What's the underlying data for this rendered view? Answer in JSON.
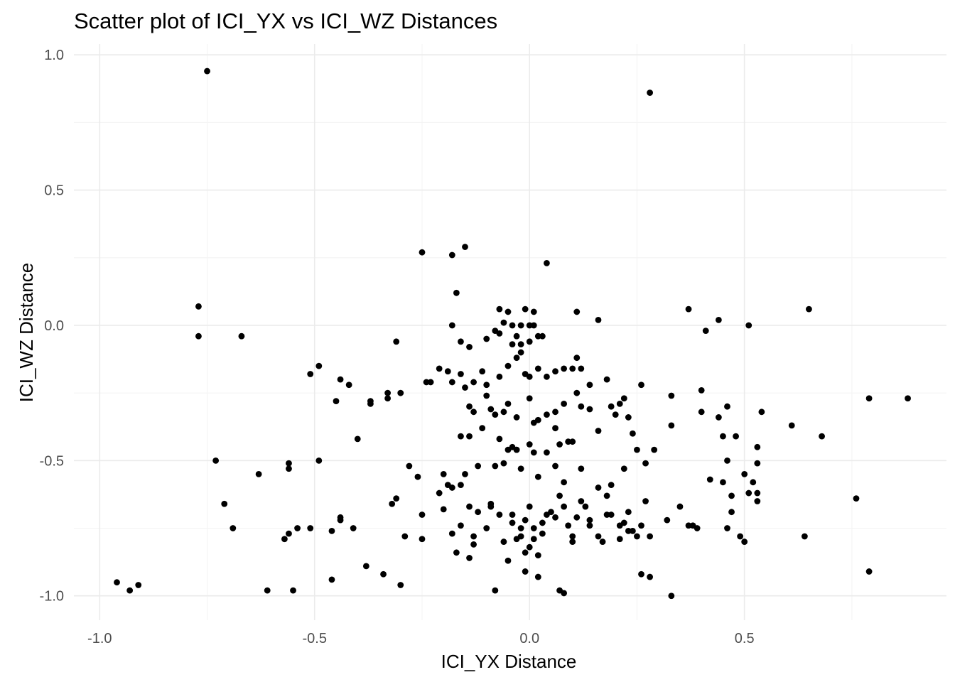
{
  "chart_data": {
    "type": "scatter",
    "title": "Scatter plot of ICI_YX vs ICI_WZ Distances",
    "xlabel": "ICI_YX Distance",
    "ylabel": "ICI_WZ Distance",
    "xlim": [
      -1.06,
      0.97
    ],
    "ylim": [
      -1.09,
      1.04
    ],
    "x_ticks": [
      -1.0,
      -0.5,
      0.0,
      0.5
    ],
    "x_tick_labels": [
      "-1.0",
      "-0.5",
      "0.0",
      "0.5"
    ],
    "y_ticks": [
      -1.0,
      -0.5,
      0.0,
      0.5,
      1.0
    ],
    "y_tick_labels": [
      "-1.0",
      "-0.5",
      "0.0",
      "0.5",
      "1.0"
    ],
    "grid": true,
    "theme": "minimal",
    "point_color": "#000000",
    "points": [
      [
        -0.75,
        0.94
      ],
      [
        0.28,
        0.86
      ],
      [
        -0.25,
        0.27
      ],
      [
        -0.18,
        0.26
      ],
      [
        -0.15,
        0.29
      ],
      [
        0.04,
        0.23
      ],
      [
        -0.17,
        0.12
      ],
      [
        0.11,
        0.05
      ],
      [
        0.16,
        0.02
      ],
      [
        0.37,
        0.06
      ],
      [
        0.44,
        0.02
      ],
      [
        0.65,
        0.06
      ],
      [
        -0.77,
        0.07
      ],
      [
        -0.77,
        -0.04
      ],
      [
        -0.67,
        -0.04
      ],
      [
        -0.07,
        0.06
      ],
      [
        -0.05,
        0.05
      ],
      [
        -0.01,
        0.06
      ],
      [
        0.01,
        0.05
      ],
      [
        -0.06,
        0.01
      ],
      [
        -0.04,
        0.0
      ],
      [
        -0.02,
        0.0
      ],
      [
        0.0,
        0.0
      ],
      [
        0.01,
        0.0
      ],
      [
        -0.08,
        -0.02
      ],
      [
        -0.07,
        -0.03
      ],
      [
        -0.18,
        0.0
      ],
      [
        -0.03,
        -0.04
      ],
      [
        0.02,
        -0.04
      ],
      [
        0.03,
        -0.04
      ],
      [
        -0.1,
        -0.05
      ],
      [
        -0.04,
        -0.07
      ],
      [
        -0.02,
        -0.07
      ],
      [
        0.0,
        -0.06
      ],
      [
        -0.16,
        -0.06
      ],
      [
        -0.14,
        -0.08
      ],
      [
        0.41,
        -0.02
      ],
      [
        0.51,
        0.0
      ],
      [
        -0.31,
        -0.06
      ],
      [
        -0.49,
        -0.15
      ],
      [
        -0.51,
        -0.18
      ],
      [
        -0.44,
        -0.2
      ],
      [
        -0.42,
        -0.22
      ],
      [
        -0.37,
        -0.28
      ],
      [
        -0.37,
        -0.29
      ],
      [
        -0.33,
        -0.25
      ],
      [
        -0.3,
        -0.25
      ],
      [
        -0.33,
        -0.27
      ],
      [
        -0.45,
        -0.28
      ],
      [
        -0.4,
        -0.42
      ],
      [
        -0.24,
        -0.21
      ],
      [
        -0.23,
        -0.21
      ],
      [
        -0.21,
        -0.16
      ],
      [
        -0.19,
        -0.17
      ],
      [
        -0.18,
        -0.21
      ],
      [
        -0.16,
        -0.18
      ],
      [
        -0.15,
        -0.23
      ],
      [
        -0.13,
        -0.21
      ],
      [
        -0.11,
        -0.17
      ],
      [
        -0.1,
        -0.22
      ],
      [
        -0.07,
        -0.19
      ],
      [
        -0.05,
        -0.15
      ],
      [
        -0.03,
        -0.12
      ],
      [
        -0.02,
        -0.1
      ],
      [
        -0.01,
        -0.18
      ],
      [
        0.0,
        -0.19
      ],
      [
        0.02,
        -0.16
      ],
      [
        0.04,
        -0.19
      ],
      [
        0.06,
        -0.17
      ],
      [
        0.08,
        -0.16
      ],
      [
        0.1,
        -0.16
      ],
      [
        0.11,
        -0.12
      ],
      [
        0.12,
        -0.16
      ],
      [
        0.14,
        -0.22
      ],
      [
        0.18,
        -0.2
      ],
      [
        -0.14,
        -0.3
      ],
      [
        -0.13,
        -0.32
      ],
      [
        -0.1,
        -0.26
      ],
      [
        -0.09,
        -0.31
      ],
      [
        -0.08,
        -0.33
      ],
      [
        -0.06,
        -0.32
      ],
      [
        -0.05,
        -0.29
      ],
      [
        -0.03,
        -0.34
      ],
      [
        0.0,
        -0.27
      ],
      [
        0.01,
        -0.36
      ],
      [
        0.02,
        -0.35
      ],
      [
        0.04,
        -0.33
      ],
      [
        0.06,
        -0.32
      ],
      [
        0.08,
        -0.29
      ],
      [
        0.11,
        -0.25
      ],
      [
        0.14,
        -0.31
      ],
      [
        0.16,
        -0.39
      ],
      [
        0.19,
        -0.3
      ],
      [
        0.21,
        -0.29
      ],
      [
        0.22,
        -0.27
      ],
      [
        0.23,
        -0.34
      ],
      [
        0.24,
        -0.4
      ],
      [
        0.26,
        -0.22
      ],
      [
        -0.16,
        -0.41
      ],
      [
        -0.14,
        -0.41
      ],
      [
        -0.11,
        -0.38
      ],
      [
        -0.07,
        -0.42
      ],
      [
        -0.05,
        -0.46
      ],
      [
        -0.04,
        -0.45
      ],
      [
        -0.03,
        -0.46
      ],
      [
        0.0,
        -0.44
      ],
      [
        0.01,
        -0.47
      ],
      [
        0.04,
        -0.47
      ],
      [
        0.06,
        -0.38
      ],
      [
        0.09,
        -0.43
      ],
      [
        0.1,
        -0.43
      ],
      [
        0.07,
        -0.44
      ],
      [
        0.12,
        -0.3
      ],
      [
        0.2,
        -0.33
      ],
      [
        -0.73,
        -0.5
      ],
      [
        -0.63,
        -0.55
      ],
      [
        -0.56,
        -0.51
      ],
      [
        -0.56,
        -0.53
      ],
      [
        -0.49,
        -0.5
      ],
      [
        -0.71,
        -0.66
      ],
      [
        -0.69,
        -0.75
      ],
      [
        -0.57,
        -0.79
      ],
      [
        -0.56,
        -0.77
      ],
      [
        -0.54,
        -0.75
      ],
      [
        -0.51,
        -0.75
      ],
      [
        -0.46,
        -0.76
      ],
      [
        -0.44,
        -0.71
      ],
      [
        -0.44,
        -0.72
      ],
      [
        -0.41,
        -0.75
      ],
      [
        -0.96,
        -0.95
      ],
      [
        -0.93,
        -0.98
      ],
      [
        -0.91,
        -0.96
      ],
      [
        -0.61,
        -0.98
      ],
      [
        -0.55,
        -0.98
      ],
      [
        -0.46,
        -0.94
      ],
      [
        -0.38,
        -0.89
      ],
      [
        -0.34,
        -0.92
      ],
      [
        -0.3,
        -0.96
      ],
      [
        -0.32,
        -0.66
      ],
      [
        -0.31,
        -0.64
      ],
      [
        -0.28,
        -0.52
      ],
      [
        -0.26,
        -0.56
      ],
      [
        -0.21,
        -0.62
      ],
      [
        -0.2,
        -0.55
      ],
      [
        -0.19,
        -0.59
      ],
      [
        -0.18,
        -0.6
      ],
      [
        -0.16,
        -0.59
      ],
      [
        -0.15,
        -0.55
      ],
      [
        -0.12,
        -0.52
      ],
      [
        -0.14,
        -0.67
      ],
      [
        -0.09,
        -0.66
      ],
      [
        -0.08,
        -0.52
      ],
      [
        -0.06,
        -0.51
      ],
      [
        -0.03,
        -0.46
      ],
      [
        -0.02,
        -0.53
      ],
      [
        0.02,
        -0.56
      ],
      [
        0.06,
        -0.52
      ],
      [
        0.08,
        -0.58
      ],
      [
        0.12,
        -0.53
      ],
      [
        0.16,
        -0.6
      ],
      [
        0.18,
        -0.63
      ],
      [
        0.19,
        -0.59
      ],
      [
        0.22,
        -0.53
      ],
      [
        0.25,
        -0.46
      ],
      [
        0.27,
        -0.51
      ],
      [
        0.29,
        -0.46
      ],
      [
        -0.29,
        -0.78
      ],
      [
        -0.25,
        -0.7
      ],
      [
        -0.25,
        -0.79
      ],
      [
        -0.2,
        -0.68
      ],
      [
        -0.18,
        -0.77
      ],
      [
        -0.17,
        -0.84
      ],
      [
        -0.16,
        -0.74
      ],
      [
        -0.14,
        -0.86
      ],
      [
        -0.13,
        -0.78
      ],
      [
        -0.13,
        -0.81
      ],
      [
        -0.12,
        -0.69
      ],
      [
        -0.1,
        -0.75
      ],
      [
        -0.09,
        -0.67
      ],
      [
        -0.08,
        -0.98
      ],
      [
        -0.07,
        -0.7
      ],
      [
        -0.05,
        -0.87
      ],
      [
        -0.04,
        -0.73
      ],
      [
        -0.03,
        -0.79
      ],
      [
        -0.02,
        -0.78
      ],
      [
        -0.01,
        -0.72
      ],
      [
        -0.01,
        -0.91
      ],
      [
        0.0,
        -0.67
      ],
      [
        0.0,
        -0.82
      ],
      [
        0.01,
        -0.75
      ],
      [
        0.01,
        -0.79
      ],
      [
        0.02,
        -0.85
      ],
      [
        0.03,
        -0.73
      ],
      [
        0.03,
        -0.77
      ],
      [
        0.05,
        -0.69
      ],
      [
        0.06,
        -0.71
      ],
      [
        0.07,
        -0.63
      ],
      [
        0.07,
        -0.98
      ],
      [
        0.08,
        -0.67
      ],
      [
        0.08,
        -0.99
      ],
      [
        0.09,
        -0.74
      ],
      [
        0.1,
        -0.78
      ],
      [
        0.1,
        -0.8
      ],
      [
        0.11,
        -0.71
      ],
      [
        0.13,
        -0.67
      ],
      [
        0.14,
        -0.72
      ],
      [
        0.14,
        -0.74
      ],
      [
        0.16,
        -0.78
      ],
      [
        0.17,
        -0.8
      ],
      [
        0.18,
        -0.7
      ],
      [
        0.19,
        -0.7
      ],
      [
        0.21,
        -0.74
      ],
      [
        0.21,
        -0.79
      ],
      [
        0.23,
        -0.69
      ],
      [
        0.23,
        -0.76
      ],
      [
        0.24,
        -0.76
      ],
      [
        0.25,
        -0.78
      ],
      [
        0.26,
        -0.74
      ],
      [
        0.26,
        -0.92
      ],
      [
        0.27,
        -0.65
      ],
      [
        0.28,
        -0.93
      ],
      [
        0.28,
        -0.78
      ],
      [
        -0.01,
        -0.84
      ],
      [
        0.02,
        -0.93
      ],
      [
        -0.04,
        -0.7
      ],
      [
        0.04,
        -0.7
      ],
      [
        -0.06,
        -0.8
      ],
      [
        0.12,
        -0.65
      ],
      [
        0.22,
        -0.73
      ],
      [
        -0.02,
        -0.75
      ],
      [
        0.32,
        -0.72
      ],
      [
        0.33,
        -1.0
      ],
      [
        0.35,
        -0.67
      ],
      [
        0.37,
        -0.74
      ],
      [
        0.38,
        -0.74
      ],
      [
        0.39,
        -0.75
      ],
      [
        0.33,
        -0.26
      ],
      [
        0.33,
        -0.37
      ],
      [
        0.4,
        -0.24
      ],
      [
        0.4,
        -0.32
      ],
      [
        0.42,
        -0.57
      ],
      [
        0.44,
        -0.34
      ],
      [
        0.45,
        -0.41
      ],
      [
        0.46,
        -0.3
      ],
      [
        0.45,
        -0.58
      ],
      [
        0.46,
        -0.5
      ],
      [
        0.47,
        -0.63
      ],
      [
        0.47,
        -0.69
      ],
      [
        0.48,
        -0.41
      ],
      [
        0.46,
        -0.75
      ],
      [
        0.49,
        -0.78
      ],
      [
        0.5,
        -0.8
      ],
      [
        0.5,
        -0.55
      ],
      [
        0.51,
        -0.62
      ],
      [
        0.52,
        -0.58
      ],
      [
        0.53,
        -0.45
      ],
      [
        0.53,
        -0.51
      ],
      [
        0.53,
        -0.62
      ],
      [
        0.53,
        -0.65
      ],
      [
        0.54,
        -0.32
      ],
      [
        0.61,
        -0.37
      ],
      [
        0.64,
        -0.78
      ],
      [
        0.68,
        -0.41
      ],
      [
        0.76,
        -0.64
      ],
      [
        0.79,
        -0.27
      ],
      [
        0.79,
        -0.91
      ],
      [
        0.88,
        -0.27
      ]
    ]
  }
}
